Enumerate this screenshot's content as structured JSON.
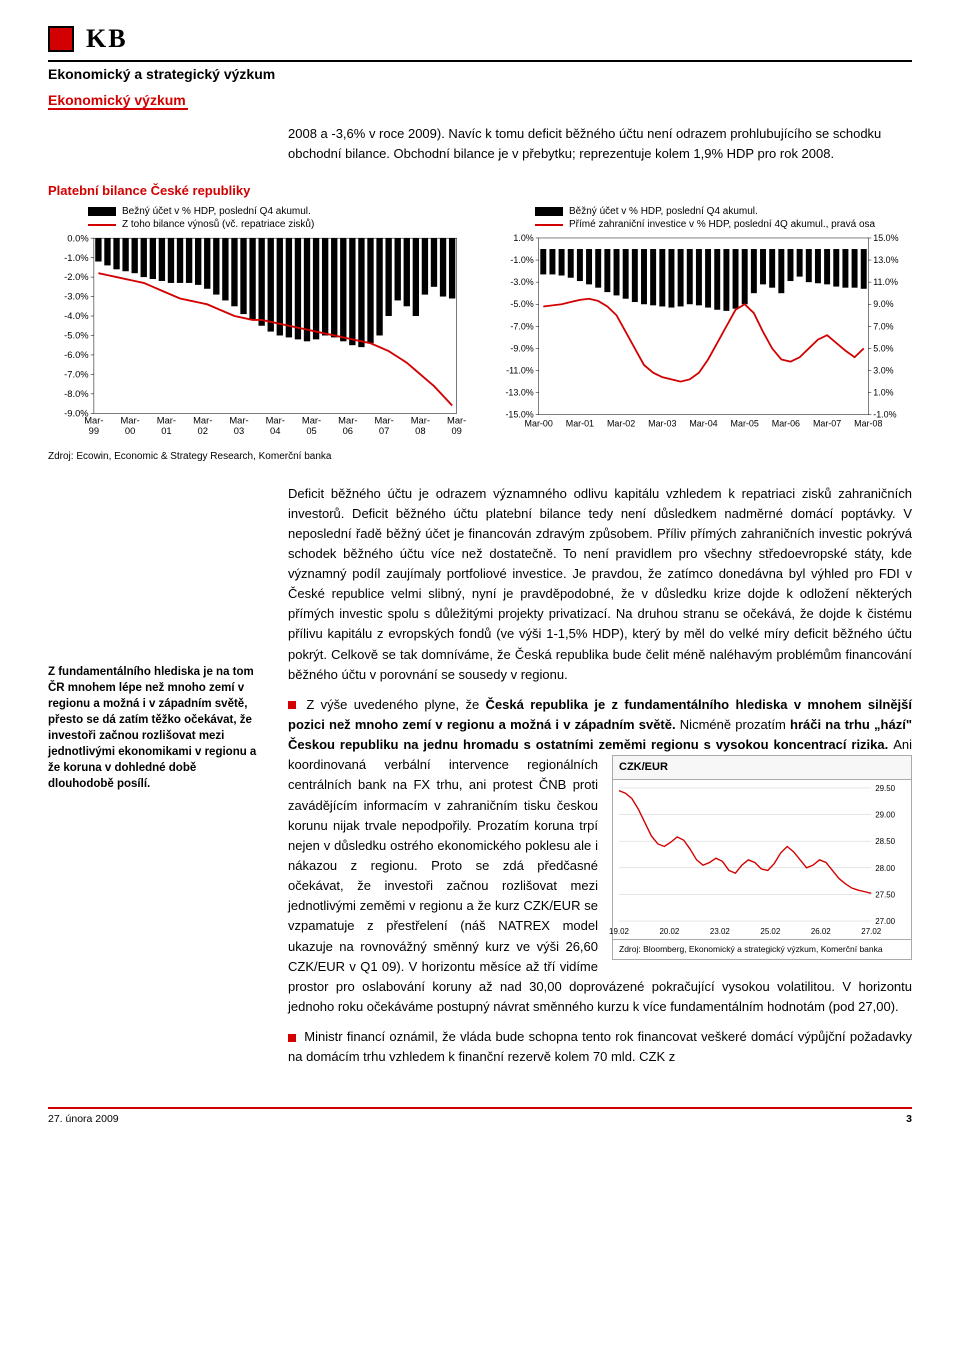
{
  "header": {
    "logo_text": "KB",
    "title": "Ekonomický a strategický výzkum",
    "subtitle": "Ekonomický výzkum"
  },
  "intro_paragraph": "2008 a -3,6% v roce 2009). Navíc k tomu deficit běžného účtu není odrazem prohlubujícího se schodku obchodní bilance. Obchodní bilance je v přebytku; reprezentuje kolem 1,9% HDP pro rok 2008.",
  "section_title": "Platební bilance České republiky",
  "chart1": {
    "legend": [
      "Bežný účet v % HDP, poslední Q4 akumul.",
      "Z toho bilance výnosů (vč. repatriace zisků)"
    ],
    "y_ticks": [
      "0.0%",
      "-1.0%",
      "-2.0%",
      "-3.0%",
      "-4.0%",
      "-5.0%",
      "-6.0%",
      "-7.0%",
      "-8.0%",
      "-9.0%"
    ],
    "y_min": -9,
    "y_max": 0,
    "x_labels": [
      "Mar-99",
      "Mar-00",
      "Mar-01",
      "Mar-02",
      "Mar-03",
      "Mar-04",
      "Mar-05",
      "Mar-06",
      "Mar-07",
      "Mar-08",
      "Mar-09"
    ],
    "bars": [
      -1.2,
      -1.4,
      -1.6,
      -1.7,
      -1.8,
      -2.0,
      -2.1,
      -2.2,
      -2.3,
      -2.3,
      -2.3,
      -2.4,
      -2.6,
      -2.9,
      -3.2,
      -3.5,
      -3.9,
      -4.2,
      -4.5,
      -4.8,
      -5.0,
      -5.1,
      -5.2,
      -5.3,
      -5.2,
      -5.0,
      -5.1,
      -5.3,
      -5.5,
      -5.6,
      -5.4,
      -5.0,
      -4.0,
      -3.2,
      -3.5,
      -4.0,
      -2.9,
      -2.5,
      -3.0,
      -3.1
    ],
    "line": [
      -1.8,
      -1.9,
      -2.0,
      -2.1,
      -2.2,
      -2.3,
      -2.5,
      -2.7,
      -2.9,
      -3.1,
      -3.2,
      -3.3,
      -3.4,
      -3.6,
      -3.8,
      -4.0,
      -4.1,
      -4.2,
      -4.2,
      -4.3,
      -4.4,
      -4.5,
      -4.6,
      -4.7,
      -4.8,
      -4.9,
      -5.0,
      -5.1,
      -5.2,
      -5.3,
      -5.4,
      -5.6,
      -5.8,
      -6.1,
      -6.4,
      -6.8,
      -7.2,
      -7.6,
      -8.1,
      -8.6
    ],
    "bar_color": "#000000",
    "line_color": "#d20000",
    "grid_color": "#000000",
    "font_size": 9
  },
  "chart2": {
    "legend": [
      "Běžný účet v % HDP, poslední Q4 akumul.",
      "Přímé zahraniční investice v % HDP, poslední 4Q akumul., pravá osa"
    ],
    "y_left_ticks": [
      "1.0%",
      "-1.0%",
      "-3.0%",
      "-5.0%",
      "-7.0%",
      "-9.0%",
      "-11.0%",
      "-13.0%",
      "-15.0%"
    ],
    "y_left_min": -15,
    "y_left_max": 1,
    "y_right_ticks": [
      "-1.0%",
      "1.0%",
      "3.0%",
      "5.0%",
      "7.0%",
      "9.0%",
      "11.0%",
      "13.0%",
      "15.0%"
    ],
    "y_right_min": -1,
    "y_right_max": 15,
    "x_labels": [
      "Mar-00",
      "Mar-01",
      "Mar-02",
      "Mar-03",
      "Mar-04",
      "Mar-05",
      "Mar-06",
      "Mar-07",
      "Mar-08"
    ],
    "bars_left": [
      -2.3,
      -2.3,
      -2.4,
      -2.6,
      -2.9,
      -3.2,
      -3.5,
      -3.9,
      -4.2,
      -4.5,
      -4.8,
      -5.0,
      -5.1,
      -5.2,
      -5.3,
      -5.2,
      -5.0,
      -5.1,
      -5.3,
      -5.5,
      -5.6,
      -5.4,
      -5.0,
      -4.0,
      -3.2,
      -3.5,
      -4.0,
      -2.9,
      -2.5,
      -3.0,
      -3.1,
      -3.2,
      -3.4,
      -3.5,
      -3.5,
      -3.6
    ],
    "line_right": [
      8.8,
      8.9,
      9.0,
      9.2,
      9.4,
      9.5,
      9.3,
      8.8,
      8.0,
      6.5,
      5.0,
      3.5,
      2.8,
      2.4,
      2.2,
      2.0,
      2.2,
      2.8,
      4.0,
      5.5,
      7.0,
      8.5,
      9.0,
      8.2,
      6.5,
      5.0,
      4.0,
      3.8,
      4.2,
      5.0,
      5.8,
      6.2,
      5.5,
      4.8,
      4.2,
      5.0
    ],
    "bar_color": "#000000",
    "line_color": "#d20000",
    "font_size": 9
  },
  "charts_source": "Zdroj: Ecowin, Economic & Strategy Research, Komerční banka",
  "side_note": "Z fundamentálního hlediska je na tom ČR mnohem lépe než mnoho zemí v regionu a možná i v západním světě, přesto se dá zatím těžko očekávat, že investoři začnou rozlišovat mezi jednotlivými ekonomikami v regionu a že koruna v dohledné době dlouhodobě posílí.",
  "para1": "Deficit běžného účtu je odrazem významného odlivu kapitálu vzhledem k repatriaci zisků zahraničních investorů. Deficit běžného účtu platební bilance tedy není důsledkem nadměrné domácí poptávky. V neposlední řadě běžný účet je financován zdravým způsobem. Příliv přímých zahraničních investic pokrývá schodek běžného účtu více než dostatečně. To není pravidlem pro všechny středoevropské státy, kde významný podíl zaujímaly portfoliové investice. Je pravdou, že zatímco donedávna byl výhled pro FDI v České republice velmi slibný, nyní je pravděpodobné, že v důsledku krize dojde k odložení některých přímých investic spolu s důležitými projekty privatizací. Na druhou stranu se očekává, že dojde k čistému přílivu kapitálu z evropských fondů (ve výši 1-1,5% HDP), který by měl do velké míry deficit běžného účtu pokrýt. Celkově se tak domníváme, že Česká republika bude čelit méně naléhavým problémům financování běžného účtu v porovnání se sousedy v regionu.",
  "para2_prefix": "Z výše uvedeného plyne, že ",
  "para2_bold1": "Česká republika je z fundamentálního hlediska v mnohem silnější pozici než mnoho zemí v regionu a možná i v západním světě.",
  "para2_mid1": " Nicméně prozatím ",
  "para2_bold2": "hráči na trhu „hází\" Českou republiku na jednu hromadu s ostatními zeměmi regionu s vysokou koncentrací rizika.",
  "para2_rest": " Ani koordinovaná verbální intervence regionálních centrálních bank na FX trhu, ani protest ČNB proti zavádějícím informacím v zahraničním tisku českou korunu nijak trvale nepodpořily. Prozatím koruna trpí nejen v důsledku ostrého ekonomického poklesu ale i nákazou z regionu. Proto se zdá předčasné očekávat, že investoři začnou rozlišovat mezi jednotlivými zeměmi v regionu a že kurz CZK/EUR se vzpamatuje z přestřelení (náš NATREX model ukazuje na rovnovážný směnný kurz ve výši 26,60 CZK/EUR v Q1 09). V horizontu měsíce až tří vidíme prostor pro oslabování koruny až nad 30,00 doprovázené pokračující vysokou volatilitou. V horizontu jednoho roku očekáváme postupný návrat směnného kurzu k více fundamentálním hodnotám (pod 27,00).",
  "para3": "Ministr financí oznámil, že vláda bude schopna tento rok financovat veškeré domácí výpůjční požadavky na domácím trhu vzhledem k finanční rezervě kolem 70 mld. CZK z",
  "czk_chart": {
    "title": "CZK/EUR",
    "y_ticks": [
      "29.50",
      "29.00",
      "28.50",
      "28.00",
      "27.50",
      "27.00"
    ],
    "y_min": 27.0,
    "y_max": 29.5,
    "x_labels": [
      "19.02",
      "20.02",
      "23.02",
      "25.02",
      "26.02",
      "27.02"
    ],
    "series": [
      29.45,
      29.4,
      29.3,
      29.1,
      28.85,
      28.6,
      28.45,
      28.4,
      28.48,
      28.58,
      28.52,
      28.35,
      28.15,
      28.05,
      28.1,
      28.18,
      28.12,
      27.95,
      27.9,
      28.05,
      28.15,
      28.1,
      27.98,
      27.95,
      28.08,
      28.28,
      28.4,
      28.3,
      28.15,
      28.0,
      28.05,
      28.15,
      28.1,
      27.95,
      27.8,
      27.7,
      27.62,
      27.58,
      27.55,
      27.52
    ],
    "color": "#d20000",
    "source": "Zdroj: Bloomberg, Ekonomický a strategický výzkum, Komerční banka"
  },
  "footer": {
    "date": "27. února 2009",
    "page": "3"
  }
}
